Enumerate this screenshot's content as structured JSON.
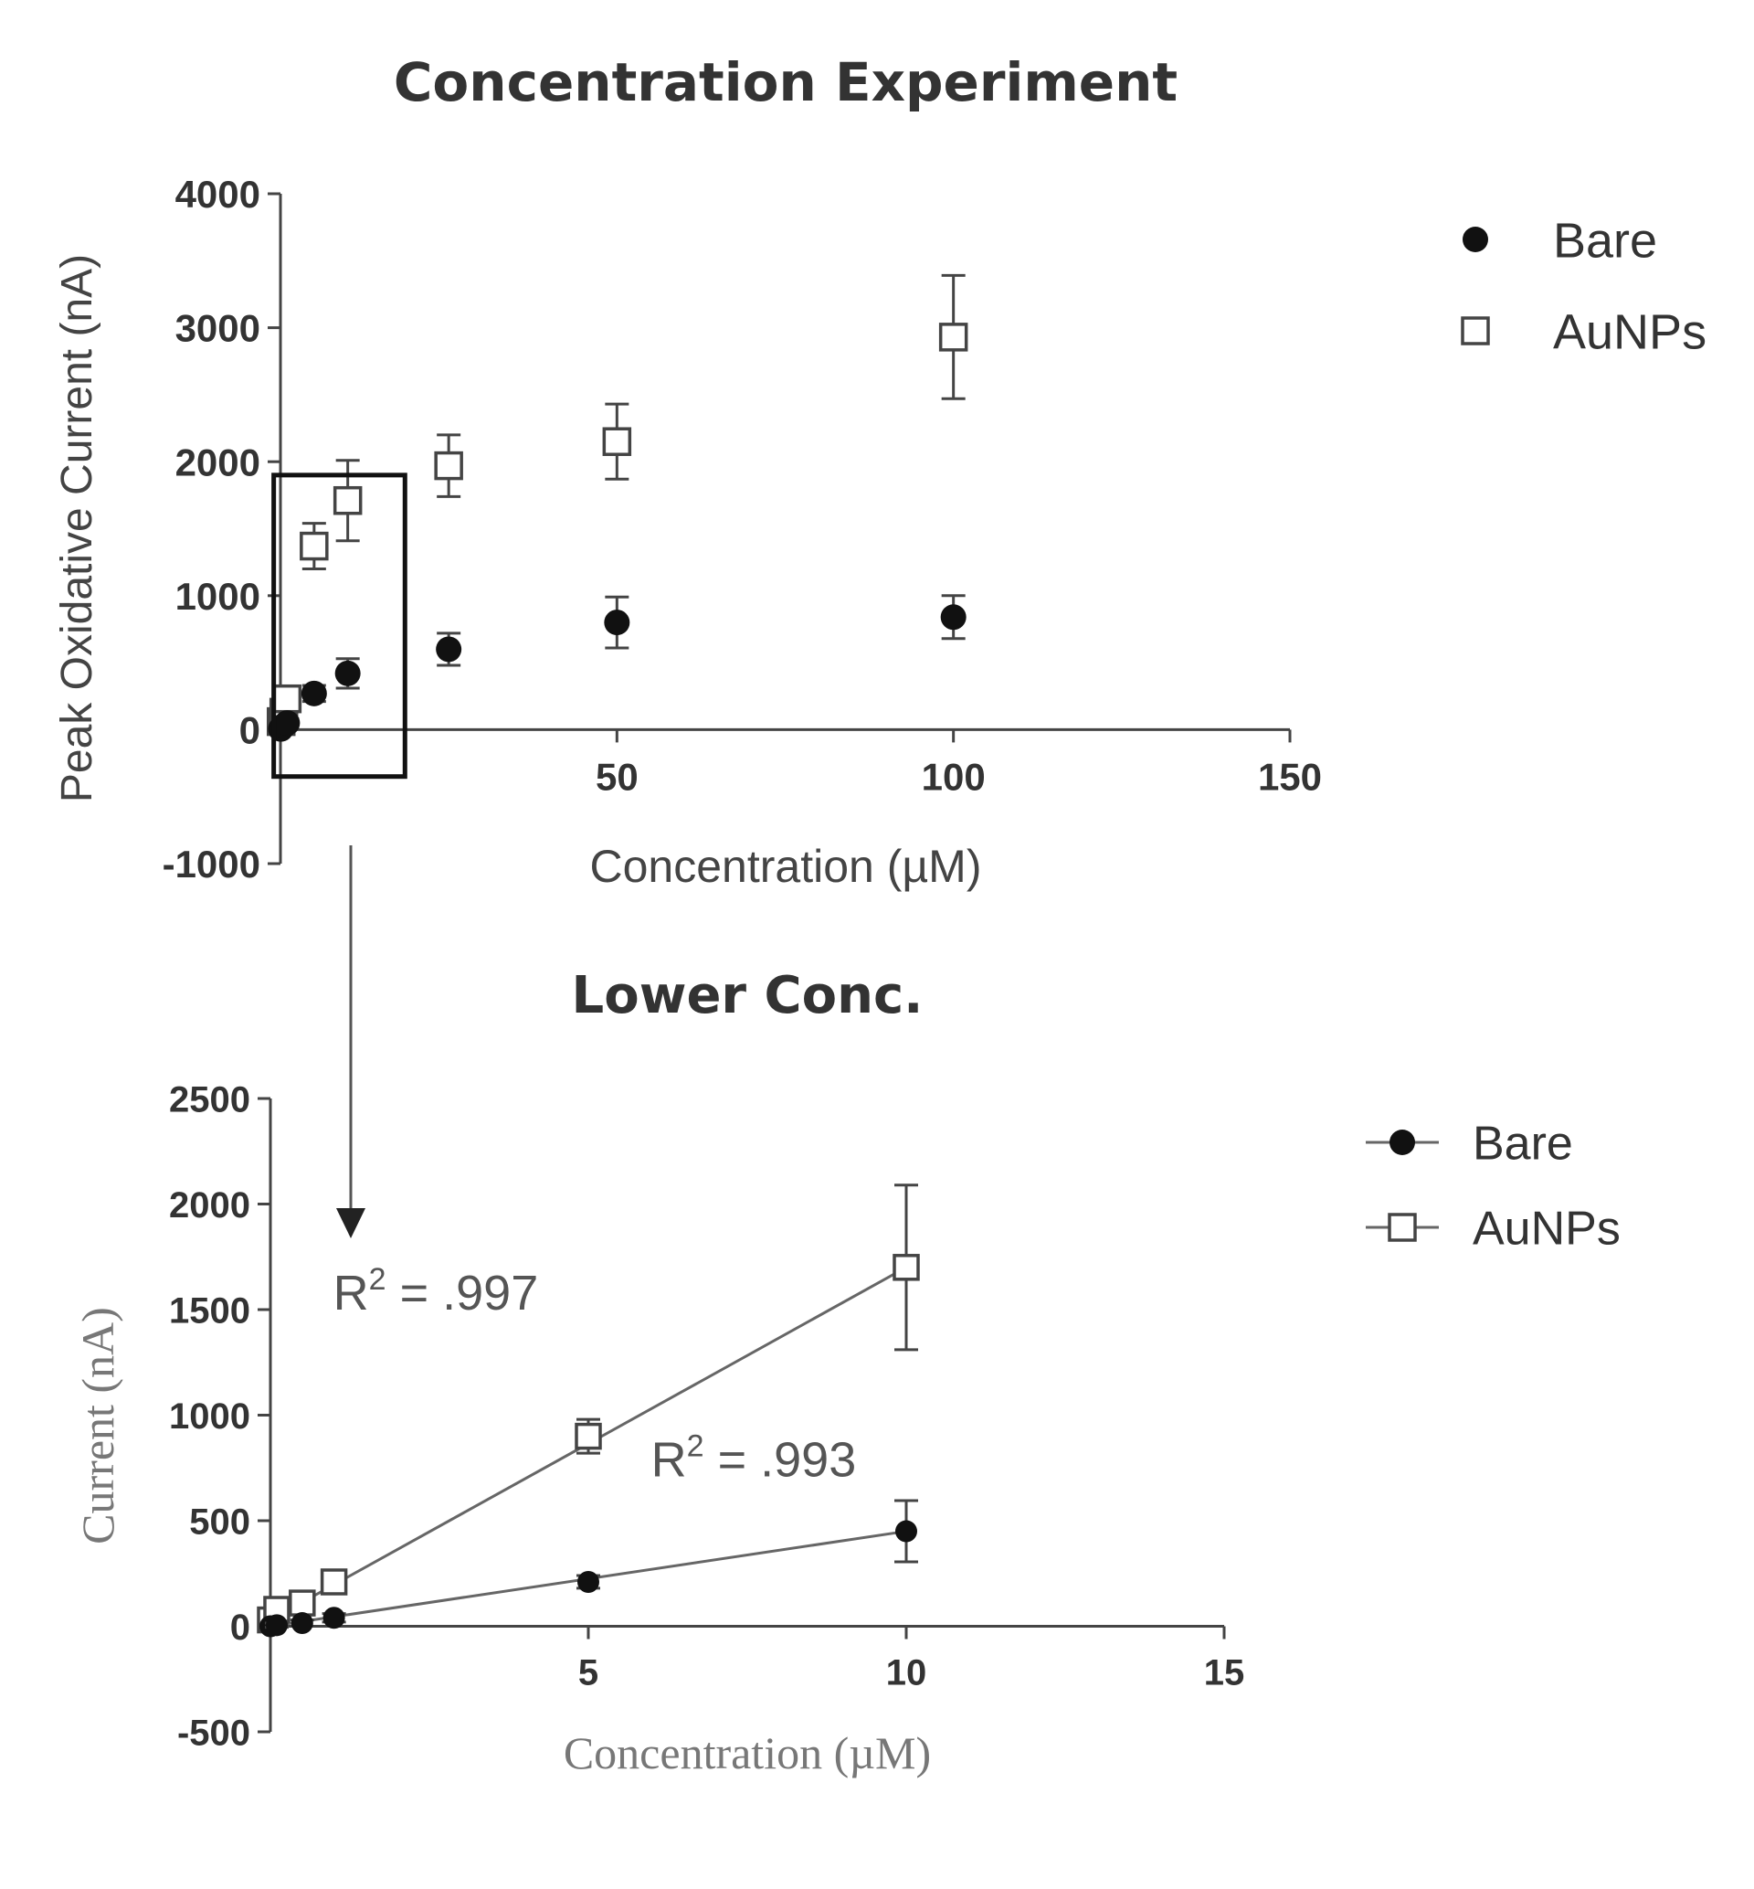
{
  "colors": {
    "axis": "#444444",
    "marker_filled": "#111111",
    "marker_open": "#444444",
    "fit_line": "#666666",
    "text": "#333333"
  },
  "chart_data": [
    {
      "type": "scatter",
      "title": "Concentration  Experiment",
      "xlabel": "Concentration (µM)",
      "ylabel": "Peak  Oxidative  Current (nA)",
      "xlim": [
        0,
        150
      ],
      "ylim": [
        -1000,
        4000
      ],
      "x_ticks": [
        50,
        100,
        150
      ],
      "y_ticks": [
        -1000,
        0,
        1000,
        2000,
        3000,
        4000
      ],
      "grid": false,
      "legend_position": "top-right",
      "zoom_box": {
        "x": [
          -1,
          18.5
        ],
        "y": [
          -350,
          1900
        ]
      },
      "series": [
        {
          "name": "Bare",
          "marker": "filled-circle",
          "x": [
            0.05,
            0.5,
            1,
            5,
            10,
            25,
            50,
            100
          ],
          "y": [
            5,
            30,
            50,
            270,
            420,
            600,
            800,
            840
          ],
          "err": [
            10,
            20,
            30,
            60,
            110,
            120,
            190,
            160
          ]
        },
        {
          "name": "AuNPs",
          "marker": "open-square",
          "x": [
            0.1,
            0.5,
            1,
            5,
            10,
            25,
            50,
            100
          ],
          "y": [
            60,
            130,
            230,
            1370,
            1710,
            1970,
            2150,
            2930
          ],
          "err": [
            40,
            60,
            90,
            170,
            300,
            230,
            280,
            460
          ]
        }
      ]
    },
    {
      "type": "line",
      "title": "Lower Conc.",
      "xlabel": "Concentration (µM)",
      "ylabel": "Current (nA)",
      "xlim": [
        0,
        15
      ],
      "ylim": [
        -500,
        2500
      ],
      "x_ticks": [
        5,
        10,
        15
      ],
      "y_ticks": [
        -500,
        0,
        500,
        1000,
        1500,
        2000,
        2500
      ],
      "grid": false,
      "legend_position": "top-right",
      "series": [
        {
          "name": "Bare",
          "marker": "filled-circle",
          "x": [
            0,
            0.1,
            0.5,
            1,
            5,
            10
          ],
          "y": [
            0,
            5,
            15,
            40,
            210,
            450
          ],
          "err": [
            10,
            10,
            15,
            20,
            30,
            145
          ],
          "fit_x": [
            0,
            10
          ],
          "fit_y": [
            0,
            450
          ]
        },
        {
          "name": "AuNPs",
          "marker": "open-square",
          "x": [
            0,
            0.1,
            0.5,
            1,
            5,
            10
          ],
          "y": [
            30,
            80,
            110,
            210,
            900,
            1700
          ],
          "err": [
            15,
            20,
            25,
            35,
            80,
            390
          ],
          "fit_x": [
            0,
            10
          ],
          "fit_y": [
            30,
            1700
          ]
        }
      ],
      "annotations": [
        {
          "base": "R",
          "sup": "2",
          "rest": " = .997",
          "x": 2.6,
          "y": 1500
        },
        {
          "base": "R",
          "sup": "2",
          "rest": " = .993",
          "x": 7.6,
          "y": 710
        }
      ]
    }
  ]
}
